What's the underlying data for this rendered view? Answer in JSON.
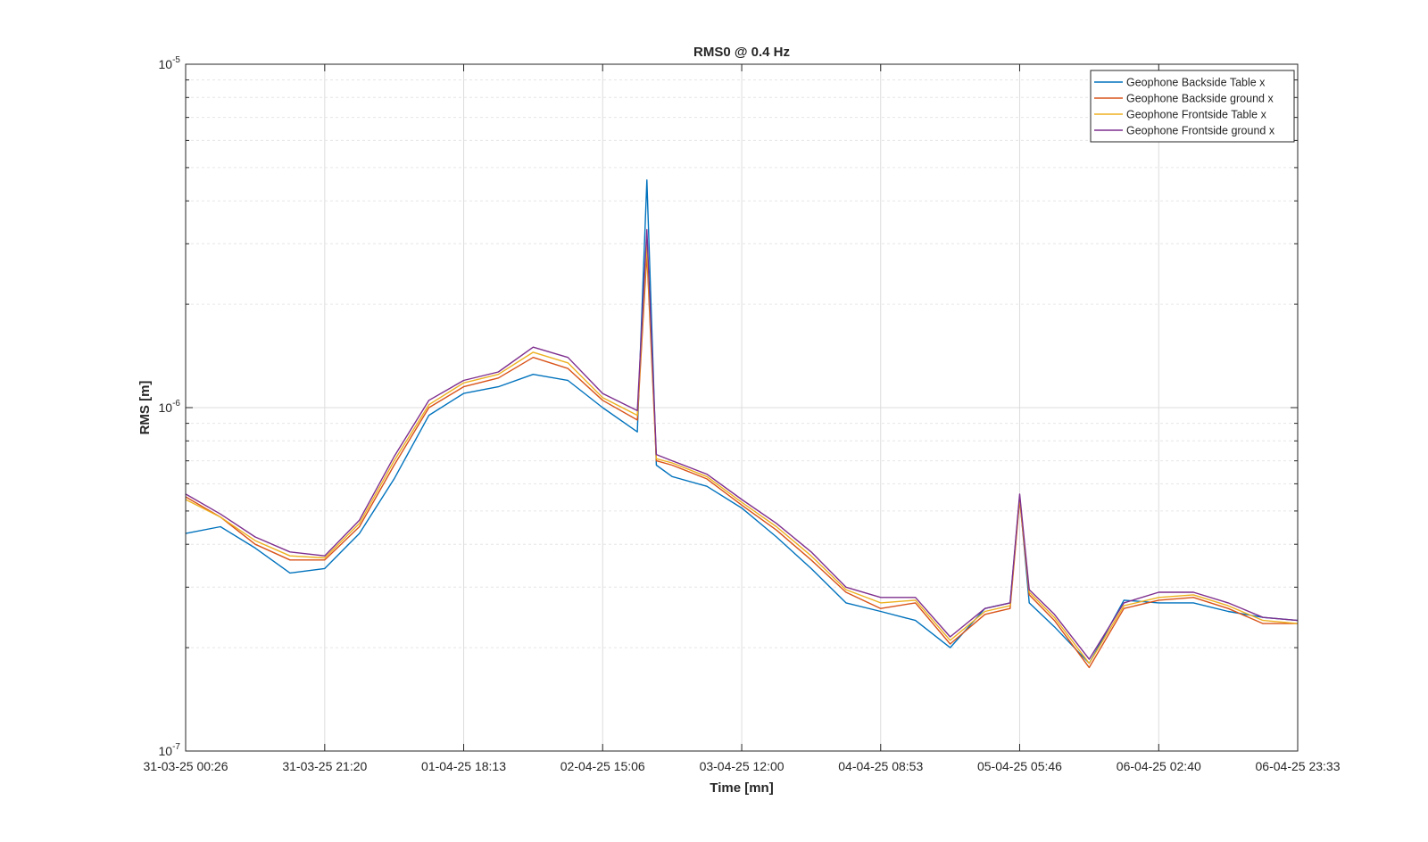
{
  "chart_data": {
    "type": "line",
    "title": "RMS0 @ 0.4 Hz",
    "xlabel": "Time [mn]",
    "ylabel": "RMS [m]",
    "yscale": "log",
    "ylim": [
      1e-07,
      1e-05
    ],
    "y_ticks": [
      {
        "base": "10",
        "exp": "-7"
      },
      {
        "base": "10",
        "exp": "-6"
      },
      {
        "base": "10",
        "exp": "-5"
      }
    ],
    "x_tick_labels": [
      "31-03-25 00:26",
      "31-03-25 21:20",
      "01-04-25 18:13",
      "02-04-25 15:06",
      "03-04-25 12:00",
      "04-04-25 08:53",
      "05-04-25 05:46",
      "06-04-25 02:40",
      "06-04-25 23:33"
    ],
    "grid": true,
    "legend_position": "top-right",
    "x": [
      "31-03-25 00:26",
      "31-03-25 05:40",
      "31-03-25 10:53",
      "31-03-25 16:07",
      "31-03-25 21:20",
      "01-04-25 02:33",
      "01-04-25 07:46",
      "01-04-25 13:00",
      "01-04-25 18:13",
      "01-04-25 23:26",
      "02-04-25 04:40",
      "02-04-25 09:53",
      "02-04-25 15:06",
      "02-04-25 20:19",
      "02-04-25 21:45",
      "02-04-25 23:10",
      "03-04-25 01:33",
      "03-04-25 06:46",
      "03-04-25 12:00",
      "03-04-25 17:13",
      "03-04-25 22:26",
      "04-04-25 03:40",
      "04-04-25 08:53",
      "04-04-25 14:06",
      "04-04-25 19:19",
      "05-04-25 00:33",
      "05-04-25 04:20",
      "05-04-25 05:46",
      "05-04-25 07:12",
      "05-04-25 10:59",
      "05-04-25 16:13",
      "05-04-25 21:26",
      "06-04-25 02:40",
      "06-04-25 07:53",
      "06-04-25 13:06",
      "06-04-25 18:20",
      "06-04-25 23:33"
    ],
    "series": [
      {
        "name": "Geophone Backside Table x",
        "color": "#0072BD",
        "values": [
          4.3e-07,
          4.5e-07,
          3.9e-07,
          3.3e-07,
          3.4e-07,
          4.3e-07,
          6.2e-07,
          9.5e-07,
          1.1e-06,
          1.15e-06,
          1.25e-06,
          1.2e-06,
          1e-06,
          8.5e-07,
          4.6e-06,
          6.8e-07,
          6.3e-07,
          5.9e-07,
          5.1e-07,
          4.2e-07,
          3.4e-07,
          2.7e-07,
          2.55e-07,
          2.4e-07,
          2e-07,
          2.6e-07,
          2.7e-07,
          5.5e-07,
          2.7e-07,
          2.3e-07,
          1.8e-07,
          2.75e-07,
          2.7e-07,
          2.7e-07,
          2.55e-07,
          2.45e-07,
          2.4e-07
        ]
      },
      {
        "name": "Geophone Backside ground x",
        "color": "#D95319",
        "values": [
          5.5e-07,
          4.8e-07,
          4e-07,
          3.6e-07,
          3.6e-07,
          4.5e-07,
          6.8e-07,
          1e-06,
          1.15e-06,
          1.22e-06,
          1.4e-06,
          1.3e-06,
          1.05e-06,
          9.2e-07,
          2.8e-06,
          7e-07,
          6.8e-07,
          6.2e-07,
          5.2e-07,
          4.4e-07,
          3.6e-07,
          2.9e-07,
          2.6e-07,
          2.7e-07,
          2.05e-07,
          2.5e-07,
          2.6e-07,
          5.4e-07,
          2.85e-07,
          2.4e-07,
          1.75e-07,
          2.6e-07,
          2.75e-07,
          2.8e-07,
          2.6e-07,
          2.35e-07,
          2.35e-07
        ]
      },
      {
        "name": "Geophone Frontside Table x",
        "color": "#EDB120",
        "values": [
          5.4e-07,
          4.8e-07,
          4.1e-07,
          3.7e-07,
          3.65e-07,
          4.6e-07,
          7e-07,
          1.02e-06,
          1.18e-06,
          1.25e-06,
          1.45e-06,
          1.35e-06,
          1.07e-06,
          9.5e-07,
          3e-06,
          7.1e-07,
          6.9e-07,
          6.3e-07,
          5.3e-07,
          4.5e-07,
          3.7e-07,
          2.95e-07,
          2.7e-07,
          2.75e-07,
          2.1e-07,
          2.55e-07,
          2.65e-07,
          5.5e-07,
          2.9e-07,
          2.45e-07,
          1.8e-07,
          2.65e-07,
          2.8e-07,
          2.85e-07,
          2.65e-07,
          2.4e-07,
          2.35e-07
        ]
      },
      {
        "name": "Geophone Frontside ground x",
        "color": "#7E2F8E",
        "values": [
          5.6e-07,
          4.9e-07,
          4.2e-07,
          3.8e-07,
          3.7e-07,
          4.7e-07,
          7.2e-07,
          1.05e-06,
          1.2e-06,
          1.27e-06,
          1.5e-06,
          1.4e-06,
          1.1e-06,
          9.8e-07,
          3.3e-06,
          7.3e-07,
          7e-07,
          6.4e-07,
          5.4e-07,
          4.6e-07,
          3.8e-07,
          3e-07,
          2.8e-07,
          2.8e-07,
          2.15e-07,
          2.6e-07,
          2.7e-07,
          5.6e-07,
          2.95e-07,
          2.5e-07,
          1.85e-07,
          2.7e-07,
          2.9e-07,
          2.9e-07,
          2.7e-07,
          2.45e-07,
          2.4e-07
        ]
      }
    ]
  }
}
